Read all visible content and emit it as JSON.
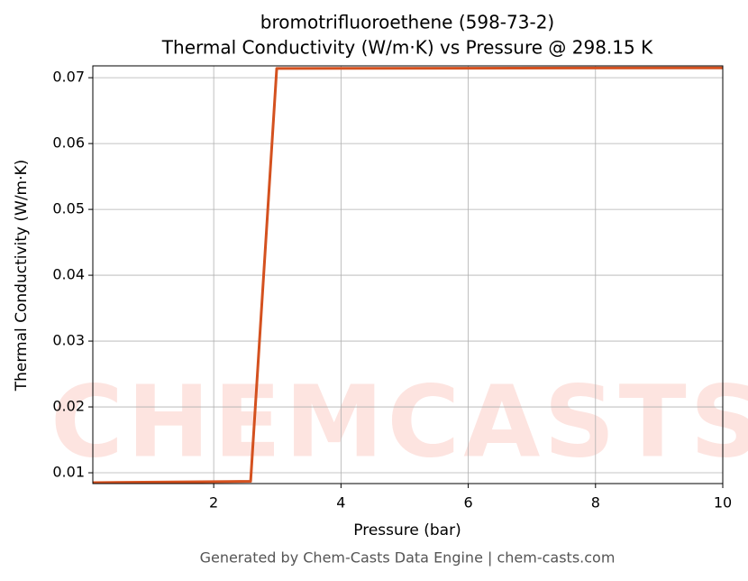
{
  "chart_data": {
    "type": "line",
    "title": "bromotrifluoroethene (598-73-2)",
    "subtitle": "Thermal Conductivity (W/m·K) vs Pressure @ 298.15 K",
    "x_label": "Pressure (bar)",
    "y_label": "Thermal Conductivity (W/m·K)",
    "watermark": "CHEMCASTS",
    "footer": "Generated by Chem-Casts Data Engine | chem-casts.com",
    "x": [
      0.1,
      2.58,
      2.99,
      10
    ],
    "series": [
      {
        "name": "Thermal Conductivity",
        "color": "#d4511f",
        "values": [
          0.0085,
          0.0087,
          0.0714,
          0.0715
        ]
      }
    ],
    "xlim": [
      0.1,
      10
    ],
    "xticks": [
      2,
      4,
      6,
      8,
      10
    ],
    "ylim": [
      0.00836,
      0.0718
    ],
    "yticks": [
      0.01,
      0.02,
      0.03,
      0.04,
      0.05,
      0.06,
      0.07
    ],
    "grid": true
  }
}
